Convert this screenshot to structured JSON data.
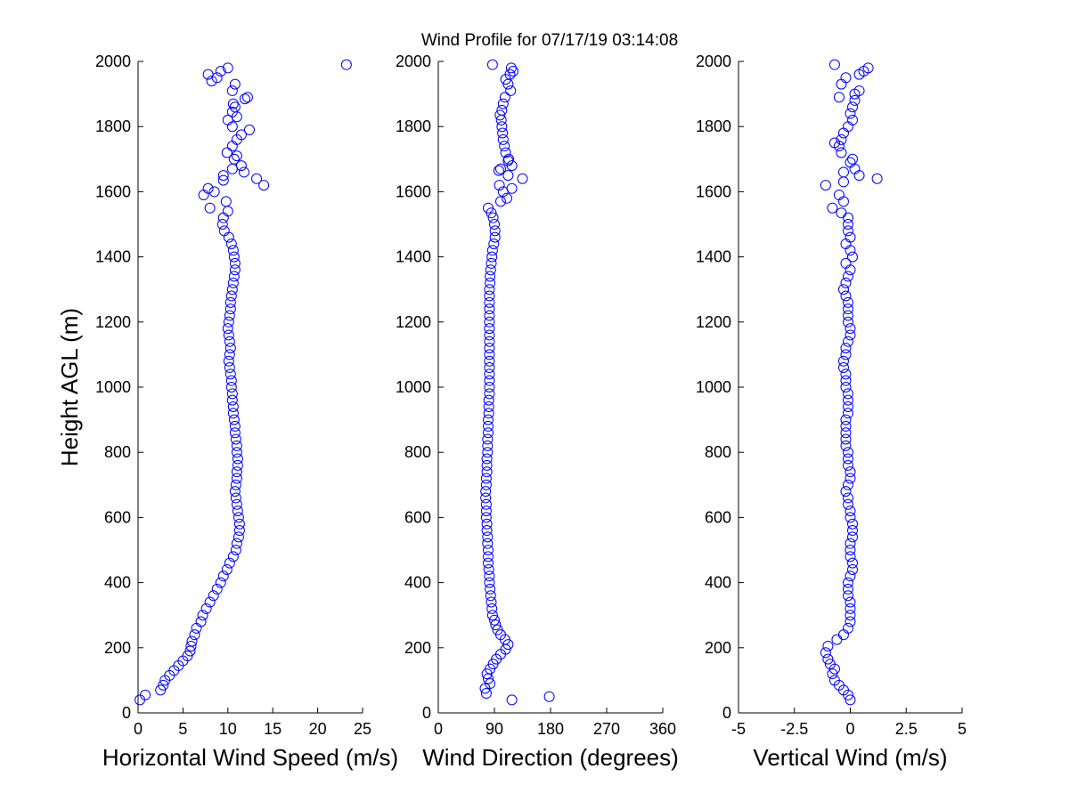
{
  "title": "Wind Profile for  07/17/19 03:14:08",
  "chart_data": [
    {
      "type": "scatter",
      "xlabel": "Horizontal Wind Speed (m/s)",
      "ylabel": "Height AGL (m)",
      "xlim": [
        0,
        25
      ],
      "ylim": [
        0,
        2000
      ],
      "xticks": [
        "0",
        "5",
        "10",
        "15",
        "20",
        "25"
      ],
      "yticks": [
        "0",
        "200",
        "400",
        "600",
        "800",
        "1000",
        "1200",
        "1400",
        "1600",
        "1800",
        "2000"
      ],
      "grid": false,
      "marker_color": "#0000ff",
      "points": [
        [
          0.2,
          40
        ],
        [
          0.8,
          55
        ],
        [
          2.5,
          70
        ],
        [
          2.8,
          85
        ],
        [
          3.0,
          100
        ],
        [
          3.5,
          115
        ],
        [
          4.0,
          130
        ],
        [
          4.5,
          145
        ],
        [
          5.0,
          160
        ],
        [
          5.5,
          175
        ],
        [
          5.8,
          190
        ],
        [
          5.9,
          205
        ],
        [
          6.0,
          220
        ],
        [
          6.3,
          240
        ],
        [
          6.5,
          260
        ],
        [
          7.0,
          280
        ],
        [
          7.2,
          300
        ],
        [
          7.6,
          320
        ],
        [
          8.0,
          340
        ],
        [
          8.4,
          360
        ],
        [
          8.8,
          380
        ],
        [
          9.2,
          400
        ],
        [
          9.5,
          420
        ],
        [
          9.9,
          440
        ],
        [
          10.2,
          460
        ],
        [
          10.6,
          480
        ],
        [
          10.9,
          500
        ],
        [
          11.0,
          520
        ],
        [
          11.2,
          540
        ],
        [
          11.3,
          560
        ],
        [
          11.3,
          580
        ],
        [
          11.2,
          600
        ],
        [
          11.1,
          620
        ],
        [
          11.0,
          640
        ],
        [
          10.9,
          660
        ],
        [
          10.8,
          680
        ],
        [
          10.9,
          700
        ],
        [
          11.0,
          720
        ],
        [
          11.0,
          740
        ],
        [
          11.1,
          760
        ],
        [
          11.1,
          780
        ],
        [
          11.0,
          800
        ],
        [
          11.0,
          820
        ],
        [
          10.9,
          840
        ],
        [
          10.8,
          860
        ],
        [
          10.8,
          880
        ],
        [
          10.7,
          900
        ],
        [
          10.6,
          920
        ],
        [
          10.6,
          940
        ],
        [
          10.5,
          960
        ],
        [
          10.5,
          980
        ],
        [
          10.4,
          1000
        ],
        [
          10.4,
          1020
        ],
        [
          10.3,
          1040
        ],
        [
          10.2,
          1060
        ],
        [
          10.1,
          1080
        ],
        [
          10.2,
          1100
        ],
        [
          10.3,
          1120
        ],
        [
          10.2,
          1140
        ],
        [
          10.1,
          1160
        ],
        [
          10.0,
          1180
        ],
        [
          10.1,
          1200
        ],
        [
          10.2,
          1220
        ],
        [
          10.3,
          1240
        ],
        [
          10.3,
          1260
        ],
        [
          10.4,
          1280
        ],
        [
          10.5,
          1300
        ],
        [
          10.6,
          1320
        ],
        [
          10.7,
          1340
        ],
        [
          10.8,
          1360
        ],
        [
          10.8,
          1380
        ],
        [
          10.7,
          1400
        ],
        [
          10.6,
          1420
        ],
        [
          10.4,
          1440
        ],
        [
          10.1,
          1460
        ],
        [
          9.6,
          1480
        ],
        [
          9.4,
          1500
        ],
        [
          9.5,
          1520
        ],
        [
          10.0,
          1540
        ],
        [
          8.0,
          1550
        ],
        [
          9.8,
          1570
        ],
        [
          7.3,
          1590
        ],
        [
          8.5,
          1600
        ],
        [
          7.8,
          1610
        ],
        [
          14.0,
          1620
        ],
        [
          9.5,
          1635
        ],
        [
          13.2,
          1640
        ],
        [
          9.5,
          1650
        ],
        [
          10.5,
          1670
        ],
        [
          11.8,
          1660
        ],
        [
          11.5,
          1680
        ],
        [
          10.7,
          1700
        ],
        [
          11.0,
          1710
        ],
        [
          9.9,
          1720
        ],
        [
          10.5,
          1740
        ],
        [
          11.0,
          1760
        ],
        [
          11.5,
          1775
        ],
        [
          12.4,
          1790
        ],
        [
          10.5,
          1800
        ],
        [
          10.0,
          1820
        ],
        [
          11.0,
          1830
        ],
        [
          10.5,
          1845
        ],
        [
          10.8,
          1860
        ],
        [
          10.6,
          1870
        ],
        [
          11.9,
          1885
        ],
        [
          12.2,
          1890
        ],
        [
          10.5,
          1910
        ],
        [
          10.8,
          1930
        ],
        [
          8.2,
          1940
        ],
        [
          8.8,
          1950
        ],
        [
          7.8,
          1960
        ],
        [
          9.2,
          1970
        ],
        [
          10.0,
          1980
        ],
        [
          23.2,
          1990
        ]
      ]
    },
    {
      "type": "scatter",
      "xlabel": "Wind Direction (degrees)",
      "xlim": [
        0,
        360
      ],
      "ylim": [
        0,
        2000
      ],
      "xticks": [
        "0",
        "90",
        "180",
        "270",
        "360"
      ],
      "yticks": [
        "0",
        "200",
        "400",
        "600",
        "800",
        "1000",
        "1200",
        "1400",
        "1600",
        "1800",
        "2000"
      ],
      "grid": false,
      "marker_color": "#0000ff",
      "points": [
        [
          118,
          40
        ],
        [
          178,
          50
        ],
        [
          77,
          60
        ],
        [
          75,
          75
        ],
        [
          83,
          90
        ],
        [
          80,
          105
        ],
        [
          78,
          120
        ],
        [
          83,
          135
        ],
        [
          88,
          150
        ],
        [
          93,
          165
        ],
        [
          100,
          180
        ],
        [
          108,
          195
        ],
        [
          112,
          210
        ],
        [
          107,
          225
        ],
        [
          100,
          240
        ],
        [
          95,
          255
        ],
        [
          92,
          270
        ],
        [
          90,
          285
        ],
        [
          87,
          300
        ],
        [
          86,
          320
        ],
        [
          85,
          340
        ],
        [
          84,
          360
        ],
        [
          83,
          380
        ],
        [
          82,
          400
        ],
        [
          82,
          420
        ],
        [
          81,
          440
        ],
        [
          80,
          460
        ],
        [
          80,
          480
        ],
        [
          80,
          500
        ],
        [
          79,
          520
        ],
        [
          79,
          540
        ],
        [
          78,
          560
        ],
        [
          78,
          580
        ],
        [
          77,
          600
        ],
        [
          77,
          620
        ],
        [
          77,
          640
        ],
        [
          76,
          660
        ],
        [
          76,
          680
        ],
        [
          77,
          700
        ],
        [
          77,
          720
        ],
        [
          78,
          740
        ],
        [
          78,
          760
        ],
        [
          78,
          780
        ],
        [
          79,
          800
        ],
        [
          79,
          820
        ],
        [
          79,
          840
        ],
        [
          80,
          860
        ],
        [
          80,
          880
        ],
        [
          80,
          900
        ],
        [
          81,
          920
        ],
        [
          81,
          940
        ],
        [
          81,
          960
        ],
        [
          82,
          980
        ],
        [
          82,
          1000
        ],
        [
          82,
          1020
        ],
        [
          82,
          1040
        ],
        [
          82,
          1060
        ],
        [
          82,
          1080
        ],
        [
          82,
          1100
        ],
        [
          82,
          1120
        ],
        [
          82,
          1140
        ],
        [
          82,
          1160
        ],
        [
          82,
          1180
        ],
        [
          82,
          1200
        ],
        [
          82,
          1220
        ],
        [
          82,
          1240
        ],
        [
          82,
          1260
        ],
        [
          82,
          1280
        ],
        [
          82,
          1300
        ],
        [
          83,
          1320
        ],
        [
          83,
          1340
        ],
        [
          84,
          1360
        ],
        [
          85,
          1380
        ],
        [
          86,
          1400
        ],
        [
          87,
          1420
        ],
        [
          89,
          1440
        ],
        [
          91,
          1460
        ],
        [
          91,
          1480
        ],
        [
          90,
          1500
        ],
        [
          88,
          1520
        ],
        [
          85,
          1535
        ],
        [
          80,
          1550
        ],
        [
          100,
          1570
        ],
        [
          110,
          1580
        ],
        [
          104,
          1600
        ],
        [
          118,
          1610
        ],
        [
          98,
          1620
        ],
        [
          135,
          1640
        ],
        [
          112,
          1650
        ],
        [
          97,
          1665
        ],
        [
          100,
          1670
        ],
        [
          118,
          1680
        ],
        [
          112,
          1695
        ],
        [
          113,
          1700
        ],
        [
          108,
          1720
        ],
        [
          106,
          1740
        ],
        [
          104,
          1760
        ],
        [
          103,
          1780
        ],
        [
          102,
          1800
        ],
        [
          101,
          1820
        ],
        [
          99,
          1835
        ],
        [
          102,
          1850
        ],
        [
          104,
          1870
        ],
        [
          107,
          1890
        ],
        [
          116,
          1910
        ],
        [
          112,
          1930
        ],
        [
          108,
          1945
        ],
        [
          115,
          1960
        ],
        [
          120,
          1970
        ],
        [
          117,
          1980
        ],
        [
          87,
          1990
        ]
      ]
    },
    {
      "type": "scatter",
      "xlabel": "Vertical Wind (m/s)",
      "xlim": [
        -5,
        5
      ],
      "ylim": [
        0,
        2000
      ],
      "xticks": [
        "-5",
        "-2.5",
        "0",
        "2.5",
        "5"
      ],
      "yticks": [
        "0",
        "200",
        "400",
        "600",
        "800",
        "1000",
        "1200",
        "1400",
        "1600",
        "1800",
        "2000"
      ],
      "grid": false,
      "marker_color": "#0000ff",
      "points": [
        [
          0.0,
          40
        ],
        [
          -0.1,
          55
        ],
        [
          -0.3,
          70
        ],
        [
          -0.5,
          85
        ],
        [
          -0.7,
          100
        ],
        [
          -0.8,
          120
        ],
        [
          -0.7,
          135
        ],
        [
          -0.9,
          150
        ],
        [
          -1.0,
          165
        ],
        [
          -1.1,
          185
        ],
        [
          -1.0,
          205
        ],
        [
          -0.6,
          225
        ],
        [
          -0.3,
          240
        ],
        [
          -0.1,
          260
        ],
        [
          0.0,
          280
        ],
        [
          0.0,
          300
        ],
        [
          0.0,
          320
        ],
        [
          0.0,
          340
        ],
        [
          -0.1,
          360
        ],
        [
          -0.1,
          380
        ],
        [
          -0.1,
          400
        ],
        [
          0.0,
          420
        ],
        [
          0.1,
          440
        ],
        [
          0.1,
          460
        ],
        [
          0.0,
          480
        ],
        [
          0.0,
          500
        ],
        [
          0.0,
          520
        ],
        [
          0.1,
          540
        ],
        [
          0.1,
          560
        ],
        [
          0.1,
          580
        ],
        [
          0.0,
          600
        ],
        [
          0.0,
          620
        ],
        [
          -0.1,
          640
        ],
        [
          -0.1,
          660
        ],
        [
          -0.2,
          680
        ],
        [
          -0.1,
          700
        ],
        [
          0.0,
          720
        ],
        [
          0.0,
          740
        ],
        [
          -0.1,
          760
        ],
        [
          -0.1,
          780
        ],
        [
          -0.1,
          800
        ],
        [
          -0.2,
          820
        ],
        [
          -0.2,
          840
        ],
        [
          -0.2,
          860
        ],
        [
          -0.2,
          880
        ],
        [
          -0.2,
          900
        ],
        [
          -0.1,
          920
        ],
        [
          -0.1,
          940
        ],
        [
          -0.1,
          960
        ],
        [
          -0.1,
          980
        ],
        [
          -0.2,
          1000
        ],
        [
          -0.2,
          1020
        ],
        [
          -0.2,
          1040
        ],
        [
          -0.3,
          1060
        ],
        [
          -0.3,
          1080
        ],
        [
          -0.2,
          1100
        ],
        [
          -0.2,
          1120
        ],
        [
          -0.1,
          1140
        ],
        [
          0.0,
          1160
        ],
        [
          0.0,
          1180
        ],
        [
          -0.1,
          1200
        ],
        [
          -0.1,
          1220
        ],
        [
          -0.1,
          1240
        ],
        [
          -0.1,
          1260
        ],
        [
          -0.2,
          1280
        ],
        [
          -0.3,
          1300
        ],
        [
          -0.2,
          1320
        ],
        [
          -0.1,
          1340
        ],
        [
          0.0,
          1360
        ],
        [
          -0.2,
          1380
        ],
        [
          0.1,
          1400
        ],
        [
          0.0,
          1420
        ],
        [
          -0.2,
          1440
        ],
        [
          0.0,
          1460
        ],
        [
          -0.1,
          1480
        ],
        [
          -0.1,
          1500
        ],
        [
          -0.1,
          1520
        ],
        [
          -0.4,
          1535
        ],
        [
          -0.8,
          1550
        ],
        [
          -0.3,
          1570
        ],
        [
          -0.5,
          1590
        ],
        [
          -1.1,
          1620
        ],
        [
          -0.3,
          1630
        ],
        [
          1.2,
          1640
        ],
        [
          0.4,
          1650
        ],
        [
          -0.3,
          1660
        ],
        [
          0.2,
          1670
        ],
        [
          0.0,
          1690
        ],
        [
          0.1,
          1700
        ],
        [
          -0.4,
          1720
        ],
        [
          -0.5,
          1740
        ],
        [
          -0.7,
          1750
        ],
        [
          -0.4,
          1760
        ],
        [
          -0.3,
          1780
        ],
        [
          -0.1,
          1800
        ],
        [
          0.1,
          1820
        ],
        [
          0.0,
          1840
        ],
        [
          0.1,
          1860
        ],
        [
          0.2,
          1880
        ],
        [
          -0.5,
          1890
        ],
        [
          0.2,
          1900
        ],
        [
          0.4,
          1910
        ],
        [
          -0.4,
          1930
        ],
        [
          -0.2,
          1950
        ],
        [
          0.4,
          1960
        ],
        [
          0.6,
          1970
        ],
        [
          0.8,
          1980
        ],
        [
          -0.7,
          1990
        ]
      ]
    }
  ]
}
